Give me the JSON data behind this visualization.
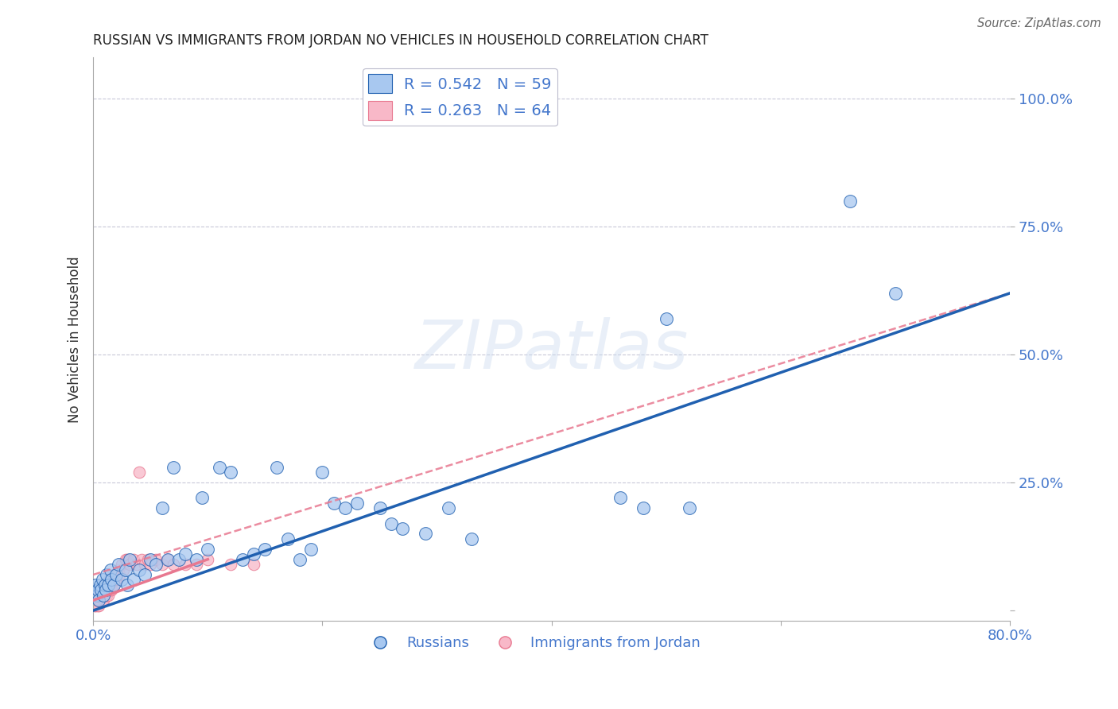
{
  "title": "RUSSIAN VS IMMIGRANTS FROM JORDAN NO VEHICLES IN HOUSEHOLD CORRELATION CHART",
  "source": "Source: ZipAtlas.com",
  "ylabel": "No Vehicles in Household",
  "xlim": [
    0.0,
    0.8
  ],
  "ylim": [
    -0.02,
    1.08
  ],
  "watermark": "ZIPatlas",
  "legend_blue_label": "R = 0.542   N = 59",
  "legend_pink_label": "R = 0.263   N = 64",
  "scatter_blue_color": "#A8C8F0",
  "scatter_pink_color": "#F8B8C8",
  "line_blue_color": "#2060B0",
  "line_pink_color": "#E87890",
  "background_color": "#FFFFFF",
  "grid_color": "#C8C8D8",
  "tick_color": "#4477CC",
  "blue_R": 0.542,
  "blue_N": 59,
  "pink_R": 0.263,
  "pink_N": 64,
  "blue_line_x": [
    0.0,
    0.8
  ],
  "blue_line_y": [
    0.0,
    0.62
  ],
  "pink_line_x": [
    0.0,
    0.8
  ],
  "pink_line_y": [
    0.06,
    0.62
  ],
  "blue_scatter_x": [
    0.002,
    0.003,
    0.004,
    0.005,
    0.006,
    0.007,
    0.008,
    0.009,
    0.01,
    0.011,
    0.012,
    0.013,
    0.015,
    0.016,
    0.018,
    0.02,
    0.022,
    0.025,
    0.028,
    0.03,
    0.032,
    0.035,
    0.04,
    0.045,
    0.05,
    0.055,
    0.06,
    0.065,
    0.07,
    0.075,
    0.08,
    0.09,
    0.095,
    0.1,
    0.11,
    0.12,
    0.13,
    0.14,
    0.15,
    0.16,
    0.17,
    0.18,
    0.19,
    0.2,
    0.21,
    0.22,
    0.23,
    0.25,
    0.26,
    0.27,
    0.29,
    0.31,
    0.33,
    0.46,
    0.48,
    0.5,
    0.52,
    0.66,
    0.7
  ],
  "blue_scatter_y": [
    0.05,
    0.03,
    0.04,
    0.02,
    0.05,
    0.04,
    0.06,
    0.03,
    0.05,
    0.04,
    0.07,
    0.05,
    0.08,
    0.06,
    0.05,
    0.07,
    0.09,
    0.06,
    0.08,
    0.05,
    0.1,
    0.06,
    0.08,
    0.07,
    0.1,
    0.09,
    0.2,
    0.1,
    0.28,
    0.1,
    0.11,
    0.1,
    0.22,
    0.12,
    0.28,
    0.27,
    0.1,
    0.11,
    0.12,
    0.28,
    0.14,
    0.1,
    0.12,
    0.27,
    0.21,
    0.2,
    0.21,
    0.2,
    0.17,
    0.16,
    0.15,
    0.2,
    0.14,
    0.22,
    0.2,
    0.57,
    0.2,
    0.8,
    0.62
  ],
  "pink_scatter_x": [
    0.001,
    0.002,
    0.002,
    0.003,
    0.003,
    0.004,
    0.004,
    0.005,
    0.005,
    0.006,
    0.006,
    0.007,
    0.007,
    0.008,
    0.008,
    0.009,
    0.009,
    0.01,
    0.01,
    0.011,
    0.011,
    0.012,
    0.012,
    0.013,
    0.013,
    0.014,
    0.014,
    0.015,
    0.015,
    0.016,
    0.016,
    0.017,
    0.018,
    0.018,
    0.019,
    0.02,
    0.02,
    0.022,
    0.023,
    0.025,
    0.026,
    0.028,
    0.03,
    0.032,
    0.035,
    0.038,
    0.04,
    0.042,
    0.045,
    0.048,
    0.05,
    0.055,
    0.06,
    0.065,
    0.07,
    0.08,
    0.09,
    0.1,
    0.12,
    0.14,
    0.002,
    0.003,
    0.004,
    0.005
  ],
  "pink_scatter_y": [
    0.01,
    0.02,
    0.01,
    0.03,
    0.02,
    0.01,
    0.03,
    0.02,
    0.01,
    0.03,
    0.02,
    0.04,
    0.03,
    0.02,
    0.04,
    0.03,
    0.02,
    0.04,
    0.03,
    0.05,
    0.04,
    0.03,
    0.05,
    0.04,
    0.03,
    0.06,
    0.05,
    0.04,
    0.06,
    0.05,
    0.04,
    0.06,
    0.05,
    0.07,
    0.06,
    0.07,
    0.06,
    0.08,
    0.07,
    0.09,
    0.08,
    0.1,
    0.1,
    0.09,
    0.1,
    0.09,
    0.27,
    0.1,
    0.09,
    0.1,
    0.09,
    0.1,
    0.09,
    0.1,
    0.09,
    0.09,
    0.09,
    0.1,
    0.09,
    0.09,
    0.03,
    0.02,
    0.04,
    0.03
  ]
}
